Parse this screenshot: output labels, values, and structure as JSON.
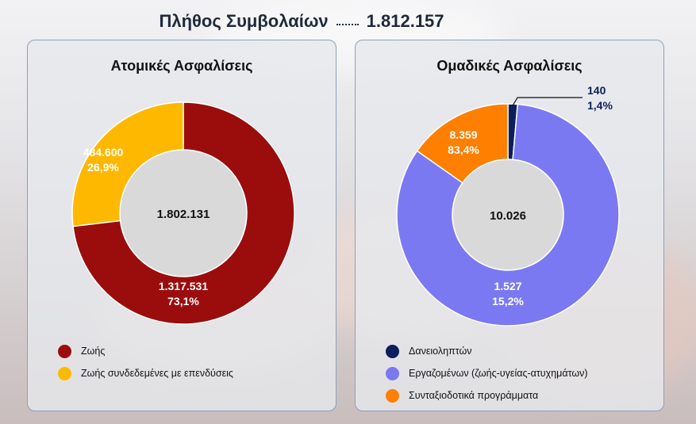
{
  "header": {
    "title": "Πλήθος Συμβολαίων",
    "total": "1.812.157"
  },
  "chart_data": [
    {
      "type": "pie",
      "title": "Ατομικές Ασφαλίσεις",
      "center_label": "1.802.131",
      "slices": [
        {
          "name": "Ζωής",
          "value": 1317531,
          "value_label": "1.317.531",
          "pct": 73.1,
          "pct_label": "73,1%",
          "color": "#9b0d0d",
          "label_color": "#ffffff"
        },
        {
          "name": "Ζωής συνδεδεμένες με επενδύσεις",
          "value": 484600,
          "value_label": "484.600",
          "pct": 26.9,
          "pct_label": "26,9%",
          "color": "#ffb800",
          "label_color": "#ffffff"
        }
      ]
    },
    {
      "type": "pie",
      "title": "Ομαδικές Ασφαλίσεις",
      "center_label": "10.026",
      "slices": [
        {
          "name": "Δανειοληπτών",
          "value": 140,
          "value_label": "140",
          "pct": 1.4,
          "pct_label": "1,4%",
          "color": "#0c1f5c",
          "label_color": "#0c1f5c"
        },
        {
          "name": "Εργαζομένων (ζωής-υγείας-ατυχημάτων)",
          "value": 8359,
          "value_label": "8.359",
          "pct": 83.4,
          "pct_label": "83,4%",
          "color": "#7b79f2",
          "label_color": "#ffffff"
        },
        {
          "name": "Συνταξιοδοτικά προγράμματα",
          "value": 1527,
          "value_label": "1.527",
          "pct": 15.2,
          "pct_label": "15,2%",
          "color": "#ff7f00",
          "label_color": "#ffffff"
        }
      ]
    }
  ]
}
